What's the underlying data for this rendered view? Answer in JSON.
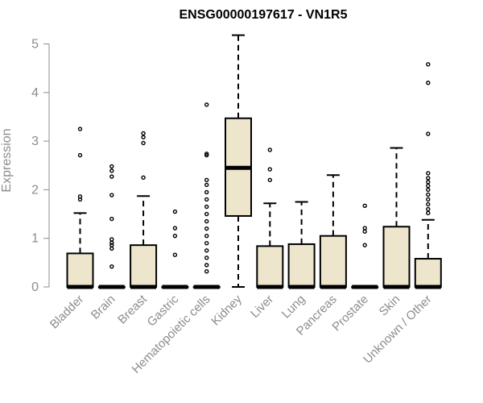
{
  "chart_data": {
    "type": "box",
    "title": "ENSG00000197617 - VN1R5",
    "xlabel": "",
    "ylabel": "Expression",
    "ylim": [
      0,
      5.2
    ],
    "yticks": [
      "0",
      "1",
      "2",
      "3",
      "4",
      "5"
    ],
    "colors": {
      "box_fill": "#ede6cc",
      "stroke": "#000000",
      "axis": "#8c8c8c"
    },
    "categories": [
      "Bladder",
      "Brain",
      "Breast",
      "Gastric",
      "Hematopoietic cells",
      "Kidney",
      "Liver",
      "Lung",
      "Pancreas",
      "Prostate",
      "Skin",
      "Unknown / Other"
    ],
    "boxes": [
      {
        "min": 0,
        "q1": 0,
        "median": 0,
        "q3": 0.69,
        "max": 1.52,
        "outliers": [
          1.8,
          1.86,
          2.71,
          3.25
        ]
      },
      {
        "min": 0,
        "q1": 0,
        "median": 0,
        "q3": 0,
        "max": 0,
        "outliers": [
          0.42,
          0.79,
          0.86,
          0.91,
          0.98,
          1.4,
          1.89,
          2.27,
          2.39,
          2.48
        ]
      },
      {
        "min": 0,
        "q1": 0,
        "median": 0,
        "q3": 0.86,
        "max": 1.87,
        "outliers": [
          2.25,
          2.96,
          3.08,
          3.16
        ]
      },
      {
        "min": 0,
        "q1": 0,
        "median": 0,
        "q3": 0,
        "max": 0,
        "outliers": [
          0.66,
          1.05,
          1.21,
          1.55
        ]
      },
      {
        "min": 0,
        "q1": 0,
        "median": 0,
        "q3": 0,
        "max": 0,
        "outliers": [
          0.32,
          0.45,
          0.6,
          0.75,
          0.9,
          1.05,
          1.2,
          1.35,
          1.5,
          1.65,
          1.8,
          1.95,
          2.1,
          2.2,
          2.71,
          2.74,
          3.75
        ]
      },
      {
        "min": 0,
        "q1": 1.46,
        "median": 2.45,
        "q3": 3.47,
        "max": 5.18,
        "outliers": []
      },
      {
        "min": 0,
        "q1": 0,
        "median": 0,
        "q3": 0.84,
        "max": 1.72,
        "outliers": [
          2.2,
          2.42,
          2.82
        ]
      },
      {
        "min": 0,
        "q1": 0,
        "median": 0,
        "q3": 0.88,
        "max": 1.75,
        "outliers": []
      },
      {
        "min": 0,
        "q1": 0,
        "median": 0,
        "q3": 1.05,
        "max": 2.3,
        "outliers": []
      },
      {
        "min": 0,
        "q1": 0,
        "median": 0,
        "q3": 0,
        "max": 0,
        "outliers": [
          0.86,
          1.14,
          1.21,
          1.67
        ]
      },
      {
        "min": 0,
        "q1": 0,
        "median": 0,
        "q3": 1.24,
        "max": 2.86,
        "outliers": []
      },
      {
        "min": 0,
        "q1": 0,
        "median": 0,
        "q3": 0.58,
        "max": 1.38,
        "outliers": [
          1.52,
          1.6,
          1.7,
          1.8,
          1.9,
          2.0,
          2.08,
          2.16,
          2.24,
          2.34,
          3.15,
          4.2,
          4.58
        ]
      }
    ]
  }
}
